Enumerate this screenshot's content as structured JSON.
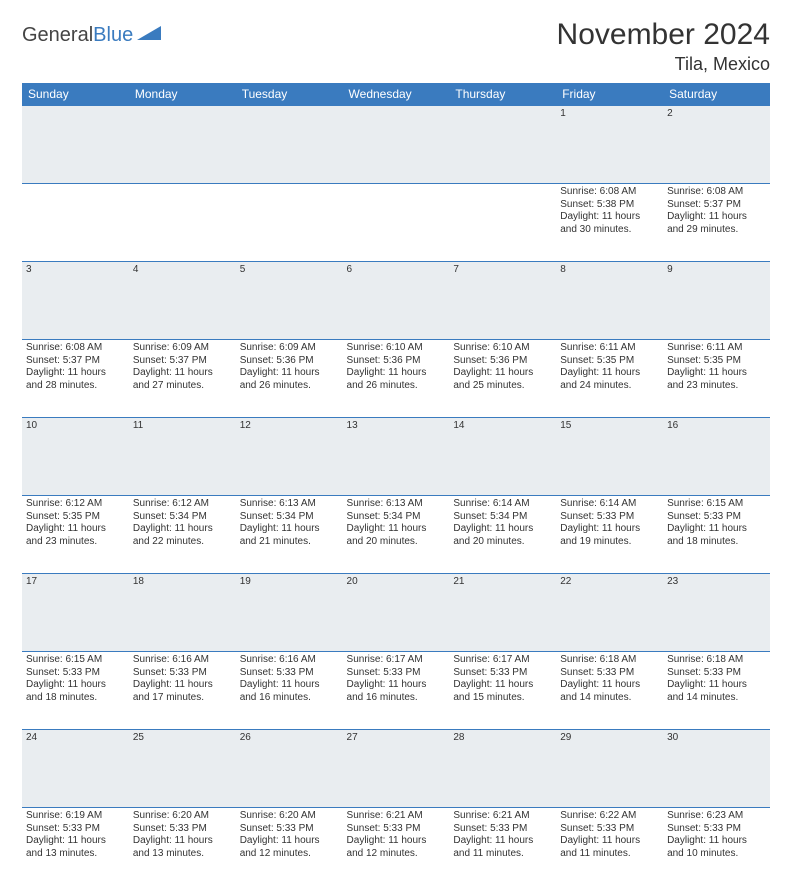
{
  "logo": {
    "text1": "General",
    "text2": "Blue"
  },
  "title": "November 2024",
  "location": "Tila, Mexico",
  "colors": {
    "header_bg": "#3a7bbf",
    "header_fg": "#ffffff",
    "daybar_bg": "#e9edf0",
    "border": "#3a7bbf"
  },
  "weekdays": [
    "Sunday",
    "Monday",
    "Tuesday",
    "Wednesday",
    "Thursday",
    "Friday",
    "Saturday"
  ],
  "weeks": [
    [
      null,
      null,
      null,
      null,
      null,
      {
        "n": "1",
        "sr": "Sunrise: 6:08 AM",
        "ss": "Sunset: 5:38 PM",
        "d1": "Daylight: 11 hours",
        "d2": "and 30 minutes."
      },
      {
        "n": "2",
        "sr": "Sunrise: 6:08 AM",
        "ss": "Sunset: 5:37 PM",
        "d1": "Daylight: 11 hours",
        "d2": "and 29 minutes."
      }
    ],
    [
      {
        "n": "3",
        "sr": "Sunrise: 6:08 AM",
        "ss": "Sunset: 5:37 PM",
        "d1": "Daylight: 11 hours",
        "d2": "and 28 minutes."
      },
      {
        "n": "4",
        "sr": "Sunrise: 6:09 AM",
        "ss": "Sunset: 5:37 PM",
        "d1": "Daylight: 11 hours",
        "d2": "and 27 minutes."
      },
      {
        "n": "5",
        "sr": "Sunrise: 6:09 AM",
        "ss": "Sunset: 5:36 PM",
        "d1": "Daylight: 11 hours",
        "d2": "and 26 minutes."
      },
      {
        "n": "6",
        "sr": "Sunrise: 6:10 AM",
        "ss": "Sunset: 5:36 PM",
        "d1": "Daylight: 11 hours",
        "d2": "and 26 minutes."
      },
      {
        "n": "7",
        "sr": "Sunrise: 6:10 AM",
        "ss": "Sunset: 5:36 PM",
        "d1": "Daylight: 11 hours",
        "d2": "and 25 minutes."
      },
      {
        "n": "8",
        "sr": "Sunrise: 6:11 AM",
        "ss": "Sunset: 5:35 PM",
        "d1": "Daylight: 11 hours",
        "d2": "and 24 minutes."
      },
      {
        "n": "9",
        "sr": "Sunrise: 6:11 AM",
        "ss": "Sunset: 5:35 PM",
        "d1": "Daylight: 11 hours",
        "d2": "and 23 minutes."
      }
    ],
    [
      {
        "n": "10",
        "sr": "Sunrise: 6:12 AM",
        "ss": "Sunset: 5:35 PM",
        "d1": "Daylight: 11 hours",
        "d2": "and 23 minutes."
      },
      {
        "n": "11",
        "sr": "Sunrise: 6:12 AM",
        "ss": "Sunset: 5:34 PM",
        "d1": "Daylight: 11 hours",
        "d2": "and 22 minutes."
      },
      {
        "n": "12",
        "sr": "Sunrise: 6:13 AM",
        "ss": "Sunset: 5:34 PM",
        "d1": "Daylight: 11 hours",
        "d2": "and 21 minutes."
      },
      {
        "n": "13",
        "sr": "Sunrise: 6:13 AM",
        "ss": "Sunset: 5:34 PM",
        "d1": "Daylight: 11 hours",
        "d2": "and 20 minutes."
      },
      {
        "n": "14",
        "sr": "Sunrise: 6:14 AM",
        "ss": "Sunset: 5:34 PM",
        "d1": "Daylight: 11 hours",
        "d2": "and 20 minutes."
      },
      {
        "n": "15",
        "sr": "Sunrise: 6:14 AM",
        "ss": "Sunset: 5:33 PM",
        "d1": "Daylight: 11 hours",
        "d2": "and 19 minutes."
      },
      {
        "n": "16",
        "sr": "Sunrise: 6:15 AM",
        "ss": "Sunset: 5:33 PM",
        "d1": "Daylight: 11 hours",
        "d2": "and 18 minutes."
      }
    ],
    [
      {
        "n": "17",
        "sr": "Sunrise: 6:15 AM",
        "ss": "Sunset: 5:33 PM",
        "d1": "Daylight: 11 hours",
        "d2": "and 18 minutes."
      },
      {
        "n": "18",
        "sr": "Sunrise: 6:16 AM",
        "ss": "Sunset: 5:33 PM",
        "d1": "Daylight: 11 hours",
        "d2": "and 17 minutes."
      },
      {
        "n": "19",
        "sr": "Sunrise: 6:16 AM",
        "ss": "Sunset: 5:33 PM",
        "d1": "Daylight: 11 hours",
        "d2": "and 16 minutes."
      },
      {
        "n": "20",
        "sr": "Sunrise: 6:17 AM",
        "ss": "Sunset: 5:33 PM",
        "d1": "Daylight: 11 hours",
        "d2": "and 16 minutes."
      },
      {
        "n": "21",
        "sr": "Sunrise: 6:17 AM",
        "ss": "Sunset: 5:33 PM",
        "d1": "Daylight: 11 hours",
        "d2": "and 15 minutes."
      },
      {
        "n": "22",
        "sr": "Sunrise: 6:18 AM",
        "ss": "Sunset: 5:33 PM",
        "d1": "Daylight: 11 hours",
        "d2": "and 14 minutes."
      },
      {
        "n": "23",
        "sr": "Sunrise: 6:18 AM",
        "ss": "Sunset: 5:33 PM",
        "d1": "Daylight: 11 hours",
        "d2": "and 14 minutes."
      }
    ],
    [
      {
        "n": "24",
        "sr": "Sunrise: 6:19 AM",
        "ss": "Sunset: 5:33 PM",
        "d1": "Daylight: 11 hours",
        "d2": "and 13 minutes."
      },
      {
        "n": "25",
        "sr": "Sunrise: 6:20 AM",
        "ss": "Sunset: 5:33 PM",
        "d1": "Daylight: 11 hours",
        "d2": "and 13 minutes."
      },
      {
        "n": "26",
        "sr": "Sunrise: 6:20 AM",
        "ss": "Sunset: 5:33 PM",
        "d1": "Daylight: 11 hours",
        "d2": "and 12 minutes."
      },
      {
        "n": "27",
        "sr": "Sunrise: 6:21 AM",
        "ss": "Sunset: 5:33 PM",
        "d1": "Daylight: 11 hours",
        "d2": "and 12 minutes."
      },
      {
        "n": "28",
        "sr": "Sunrise: 6:21 AM",
        "ss": "Sunset: 5:33 PM",
        "d1": "Daylight: 11 hours",
        "d2": "and 11 minutes."
      },
      {
        "n": "29",
        "sr": "Sunrise: 6:22 AM",
        "ss": "Sunset: 5:33 PM",
        "d1": "Daylight: 11 hours",
        "d2": "and 11 minutes."
      },
      {
        "n": "30",
        "sr": "Sunrise: 6:23 AM",
        "ss": "Sunset: 5:33 PM",
        "d1": "Daylight: 11 hours",
        "d2": "and 10 minutes."
      }
    ]
  ]
}
